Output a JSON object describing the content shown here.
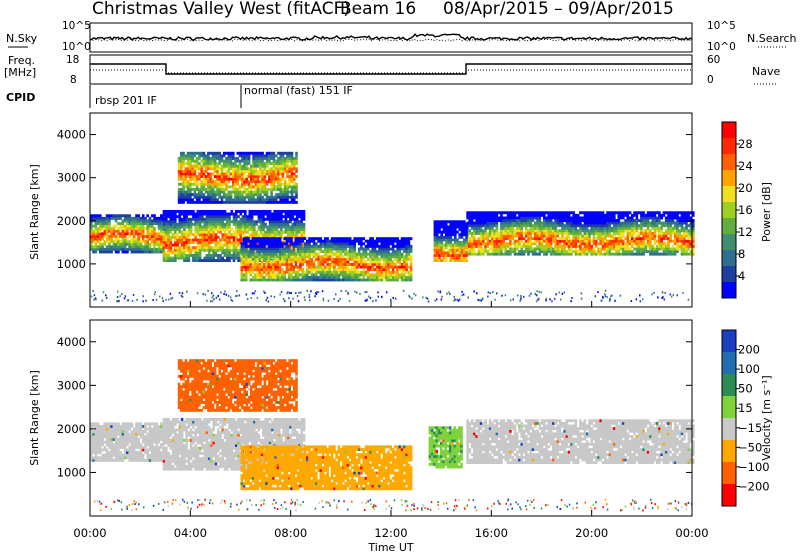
{
  "title": "Christmas Valley West (fitACF)",
  "beam": "Beam 16",
  "date_range": "08/Apr/2015 – 09/Apr/2015",
  "top_panel": {
    "left_labels": {
      "nsky": "N.Sky",
      "freq_line1": "Freq.",
      "freq_line2": "[MHz]",
      "cpid": "CPID"
    },
    "right_labels": {
      "nsearch": "N.Search",
      "nave": "Nave"
    },
    "nsky_ticks": [
      "10^5",
      "10^0"
    ],
    "nsearch_ticks": [
      "10^5",
      "10^0"
    ],
    "freq_ticks": [
      "18",
      "8"
    ],
    "nave_ticks": [
      "60",
      "0"
    ],
    "cpid_labels": [
      "rbsp 201 IF",
      "normal (fast) 151 IF"
    ]
  },
  "x_axis": {
    "label": "Time UT",
    "ticks": [
      "00:00",
      "04:00",
      "08:00",
      "12:00",
      "16:00",
      "20:00",
      "00:00"
    ]
  },
  "colors": {
    "power_scale": [
      "#0000ff",
      "#1f3fa0",
      "#2e6e90",
      "#3f8f6e",
      "#5fae3e",
      "#9fcf20",
      "#f0e020",
      "#ffa500",
      "#ff6000",
      "#ff2a00",
      "#ff0000"
    ],
    "velocity_scale": [
      "#ff0000",
      "#ff6000",
      "#ffa800",
      "#c8c8c8",
      "#7fd23a",
      "#2a8e52",
      "#1f6fb0",
      "#1a3fbf"
    ]
  },
  "chart_data": [
    {
      "type": "heatmap",
      "panel": "power",
      "ylabel": "Slant Range [km]",
      "ylim": [
        0,
        4500
      ],
      "yticks": [
        1000,
        2000,
        3000,
        4000
      ],
      "xlim_hours": [
        0,
        24
      ],
      "colorbar": {
        "label": "Power [dB]",
        "ticks": [
          "28",
          "24",
          "20",
          "16",
          "12",
          "8",
          "4"
        ]
      },
      "bands": [
        {
          "t0": 0.0,
          "t1": 2.9,
          "range_lo": 1250,
          "range_hi": 2150,
          "peak": 1600
        },
        {
          "t0": 2.9,
          "t1": 8.5,
          "range_lo": 1050,
          "range_hi": 2200,
          "peak": 1500
        },
        {
          "t0": 6.0,
          "t1": 12.8,
          "range_lo": 600,
          "range_hi": 1600,
          "peak": 950
        },
        {
          "t0": 3.5,
          "t1": 8.2,
          "range_lo": 2400,
          "range_hi": 3600,
          "peak": 3000
        },
        {
          "t0": 15.0,
          "t1": 24.0,
          "range_lo": 1200,
          "range_hi": 2200,
          "peak": 1500
        },
        {
          "t0": 13.7,
          "t1": 15.0,
          "range_lo": 1050,
          "range_hi": 2000,
          "peak": 1250
        }
      ]
    },
    {
      "type": "heatmap",
      "panel": "velocity",
      "ylabel": "Slant Range [km]",
      "ylim": [
        0,
        4500
      ],
      "yticks": [
        1000,
        2000,
        3000,
        4000
      ],
      "xlim_hours": [
        0,
        24
      ],
      "colorbar": {
        "label": "Velocity [m s⁻¹]",
        "ticks": [
          "200",
          "100",
          "50",
          "15",
          "−15",
          "−50",
          "−100",
          "−200"
        ]
      },
      "bands": [
        {
          "t0": 0.0,
          "t1": 2.9,
          "range_lo": 1250,
          "range_hi": 2150,
          "velocity": 0
        },
        {
          "t0": 2.9,
          "t1": 8.5,
          "range_lo": 1050,
          "range_hi": 2200,
          "velocity": 0
        },
        {
          "t0": 6.0,
          "t1": 12.8,
          "range_lo": 600,
          "range_hi": 1600,
          "velocity": -40
        },
        {
          "t0": 3.5,
          "t1": 8.2,
          "range_lo": 2400,
          "range_hi": 3600,
          "velocity": -120
        },
        {
          "t0": 15.0,
          "t1": 24.0,
          "range_lo": 1200,
          "range_hi": 2200,
          "velocity": 0
        },
        {
          "t0": 13.5,
          "t1": 14.8,
          "range_lo": 1100,
          "range_hi": 2050,
          "velocity": 40
        }
      ]
    }
  ]
}
